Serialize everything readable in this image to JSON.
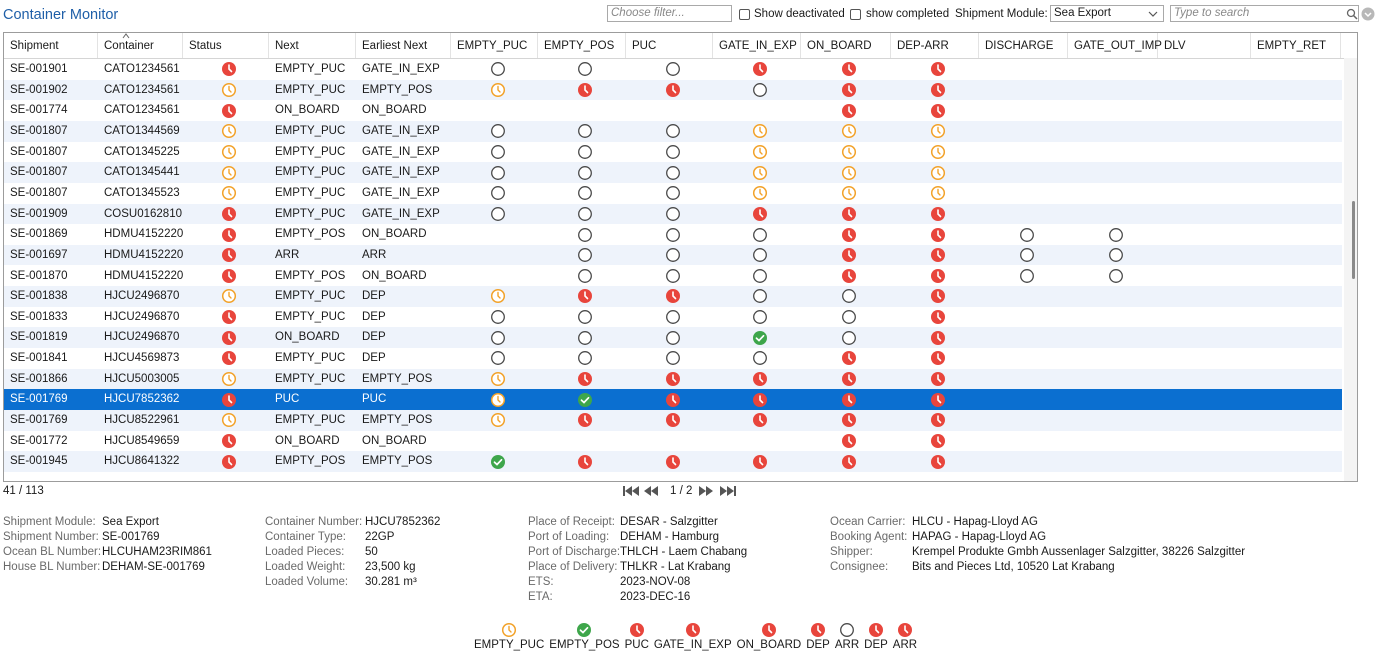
{
  "header": {
    "title": "Container Monitor",
    "filter_placeholder": "Choose filter...",
    "show_deactivated": "Show deactivated",
    "show_completed": "show completed",
    "module_label": "Shipment Module:",
    "module_value": "Sea Export",
    "search_placeholder": "Type to search"
  },
  "icon_colors": {
    "late": "#e8453c",
    "pending": "#f2a22a",
    "open": "#4a4a4a",
    "done": "#3ea64b"
  },
  "table": {
    "columns": [
      "Shipment",
      "Container",
      "Status",
      "Next",
      "Earliest Next",
      "EMPTY_PUC",
      "EMPTY_POS",
      "PUC",
      "GATE_IN_EXP",
      "ON_BOARD",
      "DEP-ARR",
      "DISCHARGE",
      "GATE_OUT_IMP",
      "DLV",
      "EMPTY_RET"
    ],
    "rows": [
      {
        "shipment": "SE-001901",
        "container": "CATO1234561",
        "status": "#e8453c",
        "next": "EMPTY_PUC",
        "earliest_next": "GATE_IN_EXP",
        "milestones": [
          "#4a4a4a",
          "#4a4a4a",
          "#4a4a4a",
          "#e8453c",
          "#e8453c",
          "#e8453c",
          null,
          null,
          null,
          null
        ]
      },
      {
        "shipment": "SE-001902",
        "container": "CATO1234561",
        "status": "#f2a22a",
        "next": "EMPTY_PUC",
        "earliest_next": "EMPTY_POS",
        "milestones": [
          "#f2a22a",
          "#e8453c",
          "#e8453c",
          "#4a4a4a",
          "#e8453c",
          "#e8453c",
          null,
          null,
          null,
          null
        ]
      },
      {
        "shipment": "SE-001774",
        "container": "CATO1234561",
        "status": "#e8453c",
        "next": "ON_BOARD",
        "earliest_next": "ON_BOARD",
        "milestones": [
          null,
          null,
          null,
          null,
          "#e8453c",
          "#e8453c",
          null,
          null,
          null,
          null
        ]
      },
      {
        "shipment": "SE-001807",
        "container": "CATO1344569",
        "status": "#f2a22a",
        "next": "EMPTY_PUC",
        "earliest_next": "GATE_IN_EXP",
        "milestones": [
          "#4a4a4a",
          "#4a4a4a",
          "#4a4a4a",
          "#f2a22a",
          "#f2a22a",
          "#f2a22a",
          null,
          null,
          null,
          null
        ]
      },
      {
        "shipment": "SE-001807",
        "container": "CATO1345225",
        "status": "#f2a22a",
        "next": "EMPTY_PUC",
        "earliest_next": "GATE_IN_EXP",
        "milestones": [
          "#4a4a4a",
          "#4a4a4a",
          "#4a4a4a",
          "#f2a22a",
          "#f2a22a",
          "#f2a22a",
          null,
          null,
          null,
          null
        ]
      },
      {
        "shipment": "SE-001807",
        "container": "CATO1345441",
        "status": "#f2a22a",
        "next": "EMPTY_PUC",
        "earliest_next": "GATE_IN_EXP",
        "milestones": [
          "#4a4a4a",
          "#4a4a4a",
          "#4a4a4a",
          "#f2a22a",
          "#f2a22a",
          "#f2a22a",
          null,
          null,
          null,
          null
        ]
      },
      {
        "shipment": "SE-001807",
        "container": "CATO1345523",
        "status": "#f2a22a",
        "next": "EMPTY_PUC",
        "earliest_next": "GATE_IN_EXP",
        "milestones": [
          "#4a4a4a",
          "#4a4a4a",
          "#4a4a4a",
          "#f2a22a",
          "#f2a22a",
          "#f2a22a",
          null,
          null,
          null,
          null
        ]
      },
      {
        "shipment": "SE-001909",
        "container": "COSU0162810",
        "status": "#e8453c",
        "next": "EMPTY_PUC",
        "earliest_next": "GATE_IN_EXP",
        "milestones": [
          "#4a4a4a",
          "#4a4a4a",
          "#4a4a4a",
          "#e8453c",
          "#e8453c",
          "#e8453c",
          null,
          null,
          null,
          null
        ]
      },
      {
        "shipment": "SE-001869",
        "container": "HDMU4152220",
        "status": "#e8453c",
        "next": "EMPTY_POS",
        "earliest_next": "ON_BOARD",
        "milestones": [
          null,
          "#4a4a4a",
          "#4a4a4a",
          "#4a4a4a",
          "#e8453c",
          "#e8453c",
          "#4a4a4a",
          "#4a4a4a",
          null,
          null
        ]
      },
      {
        "shipment": "SE-001697",
        "container": "HDMU4152220",
        "status": "#e8453c",
        "next": "ARR",
        "earliest_next": "ARR",
        "milestones": [
          null,
          "#4a4a4a",
          "#4a4a4a",
          "#4a4a4a",
          "#e8453c",
          "#e8453c",
          "#4a4a4a",
          "#4a4a4a",
          null,
          null
        ]
      },
      {
        "shipment": "SE-001870",
        "container": "HDMU4152220",
        "status": "#e8453c",
        "next": "EMPTY_POS",
        "earliest_next": "ON_BOARD",
        "milestones": [
          null,
          "#4a4a4a",
          "#4a4a4a",
          "#4a4a4a",
          "#e8453c",
          "#e8453c",
          "#4a4a4a",
          "#4a4a4a",
          null,
          null
        ]
      },
      {
        "shipment": "SE-001838",
        "container": "HJCU2496870",
        "status": "#f2a22a",
        "next": "EMPTY_PUC",
        "earliest_next": "DEP",
        "milestones": [
          "#f2a22a",
          "#e8453c",
          "#e8453c",
          "#4a4a4a",
          "#4a4a4a",
          "#e8453c",
          null,
          null,
          null,
          null
        ]
      },
      {
        "shipment": "SE-001833",
        "container": "HJCU2496870",
        "status": "#e8453c",
        "next": "EMPTY_PUC",
        "earliest_next": "DEP",
        "milestones": [
          "#4a4a4a",
          "#4a4a4a",
          "#4a4a4a",
          "#4a4a4a",
          "#4a4a4a",
          "#e8453c",
          null,
          null,
          null,
          null
        ]
      },
      {
        "shipment": "SE-001819",
        "container": "HJCU2496870",
        "status": "#e8453c",
        "next": "ON_BOARD",
        "earliest_next": "DEP",
        "milestones": [
          "#4a4a4a",
          "#4a4a4a",
          "#4a4a4a",
          "#3ea64b",
          "#4a4a4a",
          "#e8453c",
          null,
          null,
          null,
          null
        ]
      },
      {
        "shipment": "SE-001841",
        "container": "HJCU4569873",
        "status": "#e8453c",
        "next": "EMPTY_PUC",
        "earliest_next": "DEP",
        "milestones": [
          "#4a4a4a",
          "#4a4a4a",
          "#4a4a4a",
          "#4a4a4a",
          "#e8453c",
          "#e8453c",
          null,
          null,
          null,
          null
        ]
      },
      {
        "shipment": "SE-001866",
        "container": "HJCU5003005",
        "status": "#f2a22a",
        "next": "EMPTY_PUC",
        "earliest_next": "EMPTY_POS",
        "milestones": [
          "#f2a22a",
          "#e8453c",
          "#e8453c",
          "#e8453c",
          "#e8453c",
          "#e8453c",
          null,
          null,
          null,
          null
        ]
      },
      {
        "shipment": "SE-001769",
        "container": "HJCU7852362",
        "status": "#e8453c",
        "next": "PUC",
        "earliest_next": "PUC",
        "selected": true,
        "milestones": [
          "#f2a22a",
          "#3ea64b",
          "#e8453c",
          "#e8453c",
          "#e8453c",
          "#e8453c",
          null,
          null,
          null,
          null
        ]
      },
      {
        "shipment": "SE-001769",
        "container": "HJCU8522961",
        "status": "#f2a22a",
        "next": "EMPTY_PUC",
        "earliest_next": "EMPTY_POS",
        "milestones": [
          "#f2a22a",
          "#e8453c",
          "#e8453c",
          "#e8453c",
          "#e8453c",
          "#e8453c",
          null,
          null,
          null,
          null
        ]
      },
      {
        "shipment": "SE-001772",
        "container": "HJCU8549659",
        "status": "#e8453c",
        "next": "ON_BOARD",
        "earliest_next": "ON_BOARD",
        "milestones": [
          null,
          null,
          null,
          null,
          "#e8453c",
          "#e8453c",
          null,
          null,
          null,
          null
        ]
      },
      {
        "shipment": "SE-001945",
        "container": "HJCU8641322",
        "status": "#e8453c",
        "next": "EMPTY_POS",
        "earliest_next": "EMPTY_POS",
        "milestones": [
          "#3ea64b",
          "#e8453c",
          "#e8453c",
          "#e8453c",
          "#e8453c",
          "#e8453c",
          null,
          null,
          null,
          null
        ]
      }
    ]
  },
  "footer": {
    "count": "41 / 113",
    "page": "1 / 2"
  },
  "details": [
    [
      [
        "Shipment Module:",
        "Sea Export"
      ],
      [
        "Shipment Number:",
        "SE-001769"
      ],
      [
        "Ocean BL Number:",
        "HLCUHAM23RIM861"
      ],
      [
        "House BL Number:",
        "DEHAM-SE-001769"
      ]
    ],
    [
      [
        "Container Number:",
        "HJCU7852362"
      ],
      [
        "Container Type:",
        "22GP"
      ],
      [
        "Loaded Pieces:",
        "50"
      ],
      [
        "Loaded Weight:",
        "23,500 kg"
      ],
      [
        "Loaded Volume:",
        "30.281 m³"
      ]
    ],
    [
      [
        "Place of Receipt:",
        "DESAR - Salzgitter"
      ],
      [
        "Port of Loading:",
        "DEHAM - Hamburg"
      ],
      [
        "Port of Discharge:",
        "THLCH - Laem Chabang"
      ],
      [
        "Place of Delivery:",
        "THLKR - Lat Krabang"
      ],
      [
        "ETS:",
        "2023-NOV-08"
      ],
      [
        "ETA:",
        "2023-DEC-16"
      ]
    ],
    [
      [
        "Ocean Carrier:",
        "HLCU - Hapag-Lloyd AG"
      ],
      [
        "Booking Agent:",
        "HAPAG - Hapag-Lloyd AG"
      ],
      [
        "Shipper:",
        "Krempel Produkte Gmbh Aussenlager Salzgitter, 38226 Salzgitter"
      ],
      [
        "Consignee:",
        "Bits and Pieces Ltd, 10520 Lat Krabang"
      ]
    ]
  ],
  "legend": [
    {
      "label": "EMPTY_PUC",
      "icon": "#f2a22a"
    },
    {
      "label": "EMPTY_POS",
      "icon": "#3ea64b"
    },
    {
      "label": "PUC",
      "icon": "#e8453c"
    },
    {
      "label": "GATE_IN_EXP",
      "icon": "#e8453c"
    },
    {
      "label": "ON_BOARD",
      "icon": "#e8453c"
    },
    {
      "label": "DEP",
      "icon": "#e8453c"
    },
    {
      "label": "ARR",
      "icon": "#4a4a4a"
    },
    {
      "label": "DEP",
      "icon": "#e8453c"
    },
    {
      "label": "ARR",
      "icon": "#e8453c"
    }
  ]
}
